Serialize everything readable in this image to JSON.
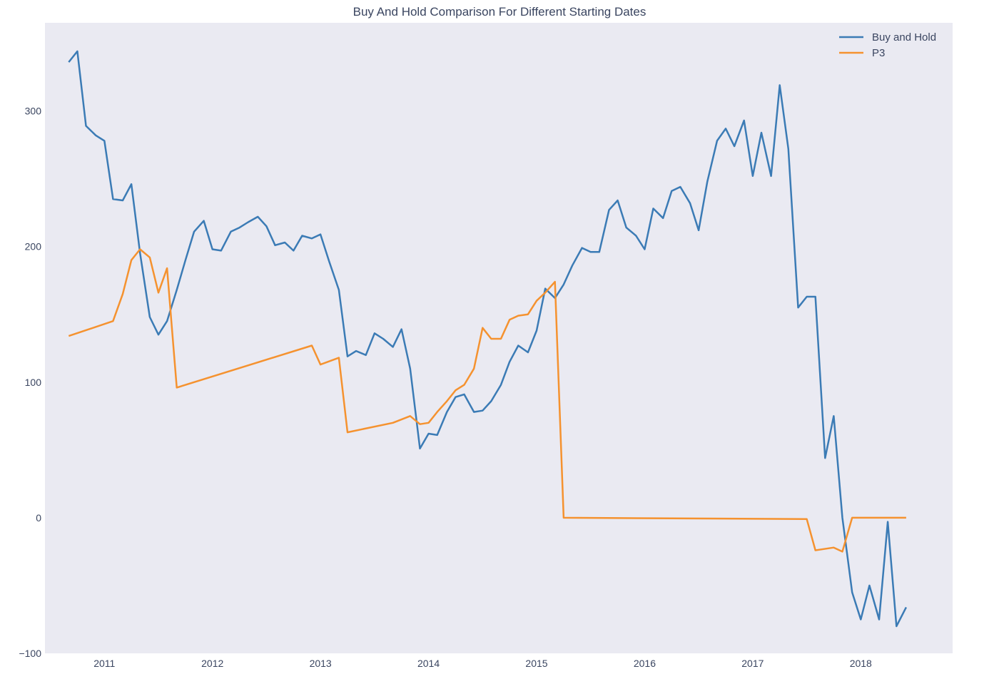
{
  "chart_data": {
    "type": "line",
    "title": "Buy And Hold Comparison For Different Starting Dates",
    "xlabel": "",
    "ylabel": "",
    "xlim": [
      2010.45,
      2018.85
    ],
    "ylim": [
      -100,
      365
    ],
    "x_ticks": [
      2011,
      2012,
      2013,
      2014,
      2015,
      2016,
      2017,
      2018
    ],
    "x_tick_labels": [
      "2011",
      "2012",
      "2013",
      "2014",
      "2015",
      "2016",
      "2017",
      "2018"
    ],
    "y_ticks": [
      -100,
      0,
      100,
      200,
      300
    ],
    "y_tick_labels": [
      "−100",
      "0",
      "100",
      "200",
      "300"
    ],
    "grid": false,
    "background": "#eaeaf2",
    "legend_position": "top-right",
    "series": [
      {
        "name": "Buy and Hold",
        "color": "#3b7bb5",
        "points": [
          [
            2010.67,
            336
          ],
          [
            2010.75,
            344
          ],
          [
            2010.83,
            289
          ],
          [
            2010.92,
            282
          ],
          [
            2011.0,
            278
          ],
          [
            2011.08,
            235
          ],
          [
            2011.17,
            234
          ],
          [
            2011.25,
            246
          ],
          [
            2011.33,
            195
          ],
          [
            2011.42,
            148
          ],
          [
            2011.5,
            135
          ],
          [
            2011.58,
            145
          ],
          [
            2011.67,
            168
          ],
          [
            2011.75,
            190
          ],
          [
            2011.83,
            211
          ],
          [
            2011.92,
            219
          ],
          [
            2012.0,
            198
          ],
          [
            2012.08,
            197
          ],
          [
            2012.17,
            211
          ],
          [
            2012.25,
            214
          ],
          [
            2012.33,
            218
          ],
          [
            2012.42,
            222
          ],
          [
            2012.5,
            215
          ],
          [
            2012.58,
            201
          ],
          [
            2012.67,
            203
          ],
          [
            2012.75,
            197
          ],
          [
            2012.83,
            208
          ],
          [
            2012.92,
            206
          ],
          [
            2013.0,
            209
          ],
          [
            2013.08,
            189
          ],
          [
            2013.17,
            168
          ],
          [
            2013.25,
            119
          ],
          [
            2013.33,
            123
          ],
          [
            2013.42,
            120
          ],
          [
            2013.5,
            136
          ],
          [
            2013.58,
            132
          ],
          [
            2013.67,
            126
          ],
          [
            2013.75,
            139
          ],
          [
            2013.83,
            110
          ],
          [
            2013.92,
            51
          ],
          [
            2014.0,
            62
          ],
          [
            2014.08,
            61
          ],
          [
            2014.17,
            78
          ],
          [
            2014.25,
            89
          ],
          [
            2014.33,
            91
          ],
          [
            2014.42,
            78
          ],
          [
            2014.5,
            79
          ],
          [
            2014.58,
            86
          ],
          [
            2014.67,
            98
          ],
          [
            2014.75,
            115
          ],
          [
            2014.83,
            127
          ],
          [
            2014.92,
            122
          ],
          [
            2015.0,
            138
          ],
          [
            2015.08,
            169
          ],
          [
            2015.17,
            162
          ],
          [
            2015.25,
            172
          ],
          [
            2015.33,
            186
          ],
          [
            2015.42,
            199
          ],
          [
            2015.5,
            196
          ],
          [
            2015.58,
            196
          ],
          [
            2015.67,
            227
          ],
          [
            2015.75,
            234
          ],
          [
            2015.83,
            214
          ],
          [
            2015.92,
            208
          ],
          [
            2016.0,
            198
          ],
          [
            2016.08,
            228
          ],
          [
            2016.17,
            221
          ],
          [
            2016.25,
            241
          ],
          [
            2016.33,
            244
          ],
          [
            2016.42,
            232
          ],
          [
            2016.5,
            212
          ],
          [
            2016.58,
            248
          ],
          [
            2016.67,
            278
          ],
          [
            2016.75,
            287
          ],
          [
            2016.83,
            274
          ],
          [
            2016.92,
            293
          ],
          [
            2017.0,
            252
          ],
          [
            2017.08,
            284
          ],
          [
            2017.17,
            252
          ],
          [
            2017.25,
            319
          ],
          [
            2017.33,
            272
          ],
          [
            2017.42,
            155
          ],
          [
            2017.5,
            163
          ],
          [
            2017.58,
            163
          ],
          [
            2017.67,
            44
          ],
          [
            2017.75,
            75
          ],
          [
            2017.83,
            0
          ],
          [
            2017.92,
            -55
          ],
          [
            2018.0,
            -75
          ],
          [
            2018.08,
            -50
          ],
          [
            2018.17,
            -75
          ],
          [
            2018.25,
            -3
          ],
          [
            2018.33,
            -80
          ],
          [
            2018.42,
            -66
          ]
        ]
      },
      {
        "name": "P3",
        "color": "#f5922f",
        "points": [
          [
            2010.67,
            134
          ],
          [
            2011.08,
            145
          ],
          [
            2011.17,
            165
          ],
          [
            2011.25,
            190
          ],
          [
            2011.33,
            198
          ],
          [
            2011.42,
            192
          ],
          [
            2011.5,
            166
          ],
          [
            2011.58,
            184
          ],
          [
            2011.67,
            96
          ],
          [
            2012.92,
            127
          ],
          [
            2013.0,
            113
          ],
          [
            2013.17,
            118
          ],
          [
            2013.25,
            63
          ],
          [
            2013.67,
            70
          ],
          [
            2013.83,
            75
          ],
          [
            2013.92,
            69
          ],
          [
            2014.0,
            70
          ],
          [
            2014.08,
            78
          ],
          [
            2014.17,
            86
          ],
          [
            2014.25,
            94
          ],
          [
            2014.33,
            98
          ],
          [
            2014.42,
            110
          ],
          [
            2014.5,
            140
          ],
          [
            2014.58,
            132
          ],
          [
            2014.67,
            132
          ],
          [
            2014.75,
            146
          ],
          [
            2014.83,
            149
          ],
          [
            2014.92,
            150
          ],
          [
            2015.0,
            160
          ],
          [
            2015.08,
            166
          ],
          [
            2015.17,
            174
          ],
          [
            2015.25,
            0
          ],
          [
            2017.5,
            -1
          ],
          [
            2017.58,
            -24
          ],
          [
            2017.75,
            -22
          ],
          [
            2017.83,
            -25
          ],
          [
            2017.92,
            0
          ],
          [
            2018.42,
            0
          ]
        ]
      }
    ]
  }
}
